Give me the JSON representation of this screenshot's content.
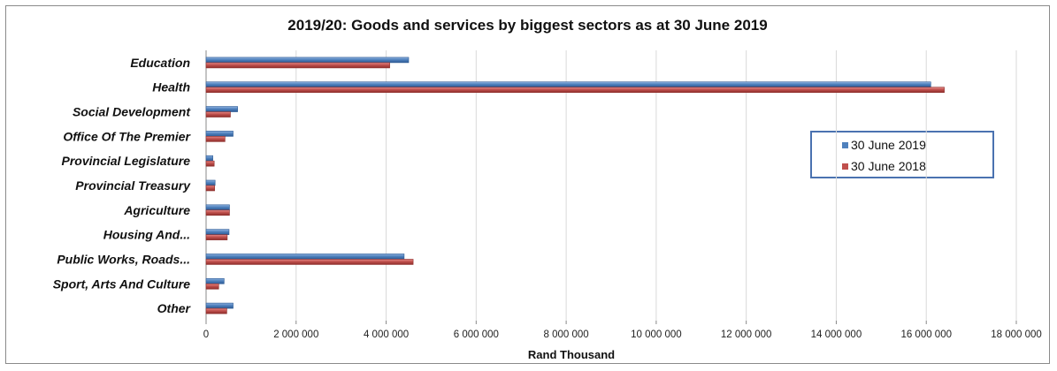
{
  "chart_data": {
    "type": "bar",
    "orientation": "horizontal",
    "title": "2019/20: Goods and services by biggest sectors as at 30 June 2019",
    "xlabel": "Rand Thousand",
    "ylabel": "",
    "xlim": [
      0,
      18000000
    ],
    "x_ticks": [
      0,
      2000000,
      4000000,
      6000000,
      8000000,
      10000000,
      12000000,
      14000000,
      16000000,
      18000000
    ],
    "x_tick_labels": [
      "0",
      "2 000 000",
      "4 000 000",
      "6 000 000",
      "8 000 000",
      "10 000 000",
      "12 000 000",
      "14 000 000",
      "16 000 000",
      "18 000 000"
    ],
    "grid": true,
    "legend_position": "right",
    "categories": [
      "Education",
      "Health",
      "Social Development",
      "Office Of The Premier",
      "Provincial Legislature",
      "Provincial Treasury",
      "Agriculture",
      "Housing And...",
      "Public Works, Roads...",
      "Sport, Arts And Culture",
      "Other"
    ],
    "series": [
      {
        "name": "30 June 2019",
        "color": "#4f81bd",
        "values": [
          4500000,
          16100000,
          700000,
          600000,
          150000,
          200000,
          520000,
          510000,
          4400000,
          400000,
          600000
        ]
      },
      {
        "name": "30 June 2018",
        "color": "#c0504d",
        "values": [
          4080000,
          16400000,
          540000,
          420000,
          180000,
          190000,
          520000,
          470000,
          4600000,
          280000,
          460000
        ]
      }
    ]
  }
}
